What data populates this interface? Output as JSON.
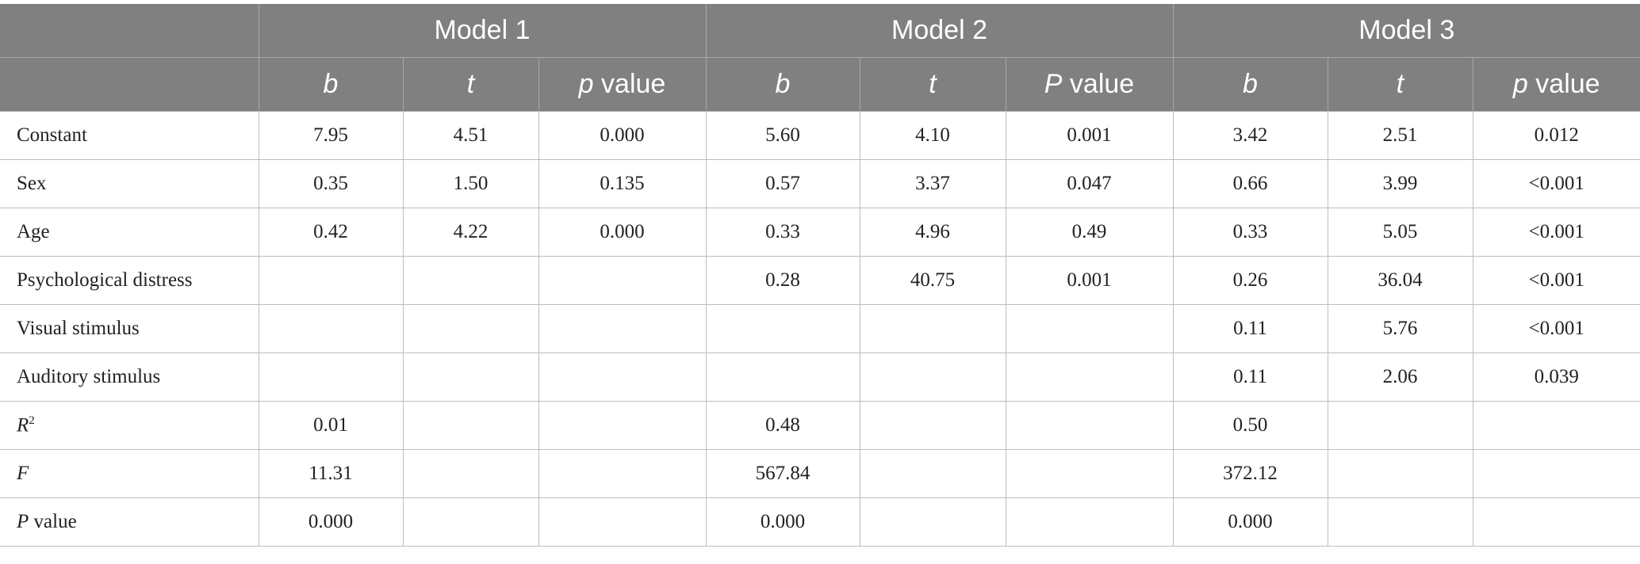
{
  "table": {
    "groups": [
      "Model 1",
      "Model 2",
      "Model 3"
    ],
    "subheaders": [
      {
        "italic": "b"
      },
      {
        "italic": "t"
      },
      {
        "italic": "p",
        "text": " value"
      },
      {
        "italic": "b"
      },
      {
        "italic": "t"
      },
      {
        "italic": "P",
        "text": " value"
      },
      {
        "italic": "b"
      },
      {
        "italic": "t"
      },
      {
        "italic": "p",
        "text": " value"
      }
    ],
    "rows": [
      {
        "label": {
          "text": "Constant"
        },
        "cells": [
          "7.95",
          "4.51",
          "0.000",
          "5.60",
          "4.10",
          "0.001",
          "3.42",
          "2.51",
          "0.012"
        ]
      },
      {
        "label": {
          "text": "Sex"
        },
        "cells": [
          "0.35",
          "1.50",
          "0.135",
          "0.57",
          "3.37",
          "0.047",
          "0.66",
          "3.99",
          "<0.001"
        ]
      },
      {
        "label": {
          "text": "Age"
        },
        "cells": [
          "0.42",
          "4.22",
          "0.000",
          "0.33",
          "4.96",
          "0.49",
          "0.33",
          "5.05",
          "<0.001"
        ]
      },
      {
        "label": {
          "text": "Psychological distress"
        },
        "cells": [
          null,
          null,
          null,
          "0.28",
          "40.75",
          "0.001",
          "0.26",
          "36.04",
          "<0.001"
        ]
      },
      {
        "label": {
          "text": "Visual stimulus"
        },
        "cells": [
          null,
          null,
          null,
          null,
          null,
          null,
          "0.11",
          "5.76",
          "<0.001"
        ]
      },
      {
        "label": {
          "text": "Auditory stimulus"
        },
        "cells": [
          null,
          null,
          null,
          null,
          null,
          null,
          "0.11",
          "2.06",
          "0.039"
        ]
      },
      {
        "label": {
          "italic": "R",
          "sup": "2"
        },
        "cells": [
          "0.01",
          null,
          null,
          "0.48",
          null,
          null,
          "0.50",
          null,
          null
        ]
      },
      {
        "label": {
          "italic": "F"
        },
        "cells": [
          "11.31",
          null,
          null,
          "567.84",
          null,
          null,
          "372.12",
          null,
          null
        ]
      },
      {
        "label": {
          "italic": "P",
          "text": " value"
        },
        "cells": [
          "0.000",
          null,
          null,
          "0.000",
          null,
          null,
          "0.000",
          null,
          null
        ]
      }
    ]
  }
}
